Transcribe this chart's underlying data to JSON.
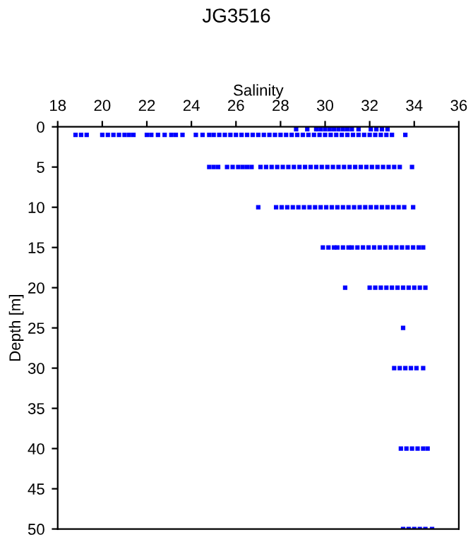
{
  "chart_data": {
    "type": "scatter",
    "title": "JG3516",
    "xlabel": "Salinity",
    "ylabel": "Depth [m]",
    "xlim": [
      18,
      36
    ],
    "xticks": [
      18,
      20,
      22,
      24,
      26,
      28,
      30,
      32,
      34,
      36
    ],
    "ylim": [
      50,
      0
    ],
    "yticks": [
      0,
      5,
      10,
      15,
      20,
      25,
      30,
      35,
      40,
      45,
      50
    ],
    "marker": "square",
    "grid": false,
    "legend": false,
    "series": [
      {
        "color": "#0000ff",
        "x": [
          28.7,
          29.2,
          29.6,
          29.8,
          30.0,
          30.2,
          30.4,
          30.6,
          30.8,
          31.0,
          31.2,
          31.5,
          32.05,
          32.3,
          32.55,
          32.8
        ],
        "values": [
          0.3,
          0.3,
          0.3,
          0.3,
          0.3,
          0.3,
          0.3,
          0.3,
          0.3,
          0.3,
          0.3,
          0.3,
          0.3,
          0.3,
          0.3,
          0.3
        ]
      },
      {
        "color": "#0000ff",
        "x": [
          18.8,
          19.05,
          19.3,
          20.0,
          20.25,
          20.5,
          20.75,
          21.0,
          21.2,
          21.4,
          22.0,
          22.2,
          22.5,
          22.8,
          23.1,
          23.3,
          23.6,
          24.2,
          24.5,
          24.8,
          25.0,
          25.25,
          25.5,
          25.75,
          26.0,
          26.25,
          26.5,
          26.75,
          27.0,
          27.25,
          27.5,
          27.75,
          28.0,
          28.25,
          28.5,
          28.75,
          29.0,
          29.25,
          29.5,
          29.75,
          30.0,
          30.25,
          30.5,
          30.75,
          31.0,
          31.25,
          31.5,
          31.75,
          32.0,
          32.25,
          32.5,
          32.75,
          33.0,
          33.6
        ],
        "values": [
          1,
          1,
          1,
          1,
          1,
          1,
          1,
          1,
          1,
          1,
          1,
          1,
          1,
          1,
          1,
          1,
          1,
          1,
          1,
          1,
          1,
          1,
          1,
          1,
          1,
          1,
          1,
          1,
          1,
          1,
          1,
          1,
          1,
          1,
          1,
          1,
          1,
          1,
          1,
          1,
          1,
          1,
          1,
          1,
          1,
          1,
          1,
          1,
          1,
          1,
          1,
          1,
          1,
          1
        ]
      },
      {
        "color": "#0000ff",
        "x": [
          24.8,
          25.0,
          25.2,
          25.6,
          25.85,
          26.1,
          26.3,
          26.5,
          26.7,
          27.1,
          27.35,
          27.6,
          27.85,
          28.1,
          28.35,
          28.6,
          28.85,
          29.1,
          29.35,
          29.6,
          29.85,
          30.1,
          30.35,
          30.6,
          30.85,
          31.1,
          31.35,
          31.6,
          31.85,
          32.1,
          32.35,
          32.6,
          32.85,
          33.1,
          33.35,
          33.9
        ],
        "values": [
          5,
          5,
          5,
          5,
          5,
          5,
          5,
          5,
          5,
          5,
          5,
          5,
          5,
          5,
          5,
          5,
          5,
          5,
          5,
          5,
          5,
          5,
          5,
          5,
          5,
          5,
          5,
          5,
          5,
          5,
          5,
          5,
          5,
          5,
          5,
          5
        ]
      },
      {
        "color": "#0000ff",
        "x": [
          27.0,
          27.8,
          28.05,
          28.3,
          28.55,
          28.8,
          29.05,
          29.3,
          29.55,
          29.8,
          30.05,
          30.3,
          30.55,
          30.8,
          31.05,
          31.3,
          31.55,
          31.8,
          32.05,
          32.3,
          32.55,
          32.8,
          33.05,
          33.3,
          33.55,
          33.95
        ],
        "values": [
          10,
          10,
          10,
          10,
          10,
          10,
          10,
          10,
          10,
          10,
          10,
          10,
          10,
          10,
          10,
          10,
          10,
          10,
          10,
          10,
          10,
          10,
          10,
          10,
          10,
          10
        ]
      },
      {
        "color": "#0000ff",
        "x": [
          29.9,
          30.15,
          30.4,
          30.55,
          30.8,
          31.05,
          31.2,
          31.45,
          31.7,
          31.95,
          32.2,
          32.45,
          32.7,
          32.95,
          33.2,
          33.45,
          33.7,
          33.95,
          34.2,
          34.4
        ],
        "values": [
          15,
          15,
          15,
          15,
          15,
          15,
          15,
          15,
          15,
          15,
          15,
          15,
          15,
          15,
          15,
          15,
          15,
          15,
          15,
          15
        ]
      },
      {
        "color": "#0000ff",
        "x": [
          30.9,
          32.0,
          32.25,
          32.5,
          32.75,
          33.0,
          33.25,
          33.5,
          33.75,
          34.0,
          34.25,
          34.5
        ],
        "values": [
          20,
          20,
          20,
          20,
          20,
          20,
          20,
          20,
          20,
          20,
          20,
          20
        ]
      },
      {
        "color": "#0000ff",
        "x": [
          33.5
        ],
        "values": [
          25
        ]
      },
      {
        "color": "#0000ff",
        "x": [
          33.1,
          33.35,
          33.6,
          33.85,
          34.1,
          34.4
        ],
        "values": [
          30,
          30,
          30,
          30,
          30,
          30
        ]
      },
      {
        "color": "#0000ff",
        "x": [
          33.4,
          33.65,
          33.9,
          34.15,
          34.4,
          34.6
        ],
        "values": [
          40,
          40,
          40,
          40,
          40,
          40
        ]
      },
      {
        "color": "#0000ff",
        "x": [
          33.5,
          33.75,
          34.0,
          34.25,
          34.5,
          34.8
        ],
        "values": [
          50,
          50,
          50,
          50,
          50,
          50
        ]
      }
    ]
  }
}
